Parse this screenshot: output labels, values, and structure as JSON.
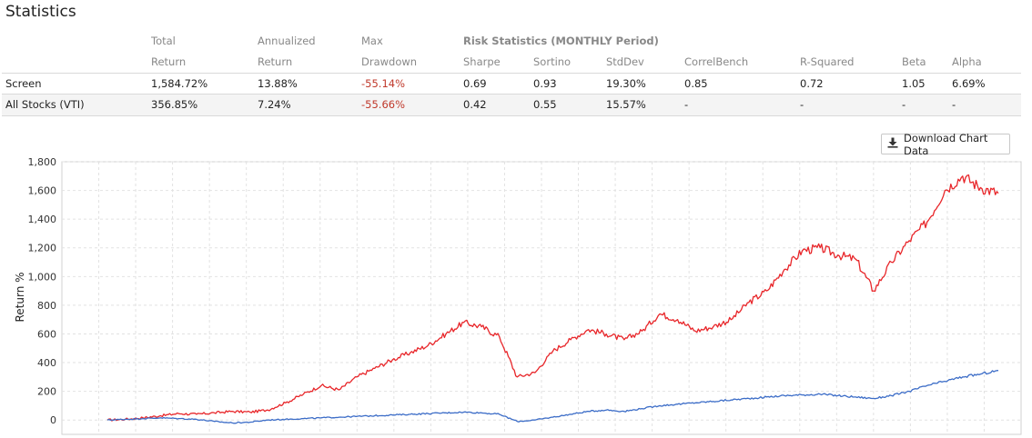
{
  "title": "Statistics",
  "table": {
    "header_row1": [
      "",
      "Total",
      "Annualized",
      "Max",
      "Risk Statistics (MONTHLY Period)",
      "",
      "",
      "",
      "",
      "",
      ""
    ],
    "header_row2": [
      "",
      "Return",
      "Return",
      "Drawdown",
      "Sharpe",
      "Sortino",
      "StdDev",
      "CorrelBench",
      "R-Squared",
      "Beta",
      "Alpha"
    ],
    "rows": [
      [
        "Screen",
        "1,584.72%",
        "13.88%",
        "-55.14%",
        "0.69",
        "0.93",
        "19.30%",
        "0.85",
        "0.72",
        "1.05",
        "6.69%"
      ],
      [
        "All Stocks (VTI)",
        "356.85%",
        "7.24%",
        "-55.66%",
        "0.42",
        "0.55",
        "15.57%",
        "-",
        "-",
        "-",
        "-"
      ]
    ]
  },
  "download_button": {
    "label": "Download Chart Data",
    "icon": "download-icon"
  },
  "chart_data": {
    "type": "line",
    "title": "",
    "xlabel": "",
    "ylabel": "Return %",
    "ylim": [
      -100,
      1800
    ],
    "yticks": [
      "0",
      "200",
      "400",
      "600",
      "800",
      "1,000",
      "1,200",
      "1,400",
      "1,600",
      "1,800"
    ],
    "grid": true,
    "legend": "none",
    "x": [
      0,
      2,
      4,
      6,
      8,
      10,
      12,
      14,
      16,
      18,
      20,
      22,
      24,
      26,
      28,
      30,
      32,
      34,
      36,
      38,
      40,
      42,
      44,
      46,
      48,
      50,
      52,
      54,
      56,
      58,
      60,
      62,
      64,
      66,
      68,
      70,
      72,
      74,
      76,
      78,
      80,
      82,
      84,
      86,
      88,
      90,
      92,
      94,
      96,
      98,
      100
    ],
    "series": [
      {
        "color": "#e8262a",
        "values": [
          0,
          5,
          15,
          30,
          45,
          40,
          50,
          60,
          55,
          70,
          120,
          180,
          240,
          210,
          300,
          360,
          420,
          470,
          520,
          600,
          680,
          650,
          580,
          300,
          330,
          480,
          560,
          630,
          600,
          560,
          620,
          740,
          700,
          620,
          650,
          700,
          820,
          900,
          1050,
          1180,
          1200,
          1150,
          1120,
          900,
          1100,
          1250,
          1380,
          1600,
          1700,
          1620,
          1580
        ]
      },
      {
        "color": "#3b6cc7",
        "values": [
          0,
          5,
          10,
          15,
          10,
          5,
          -10,
          -20,
          -15,
          0,
          5,
          10,
          15,
          20,
          25,
          30,
          35,
          40,
          45,
          50,
          55,
          50,
          40,
          -10,
          0,
          20,
          40,
          60,
          70,
          60,
          80,
          100,
          110,
          120,
          130,
          140,
          150,
          160,
          170,
          175,
          180,
          170,
          160,
          150,
          170,
          200,
          240,
          270,
          300,
          320,
          345
        ]
      }
    ]
  }
}
